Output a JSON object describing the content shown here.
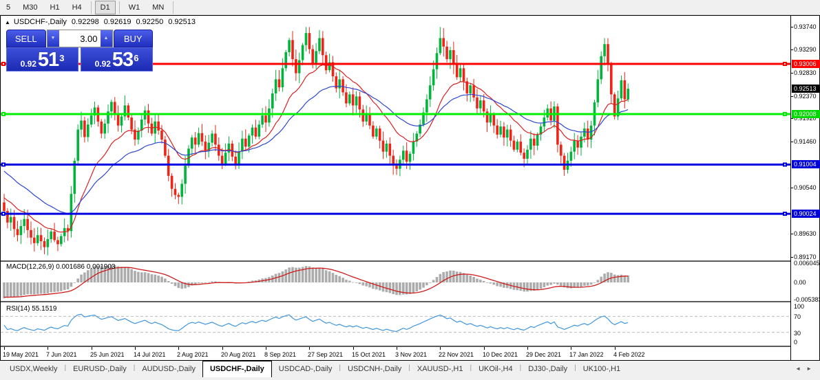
{
  "toolbar": {
    "timeframes": [
      {
        "label": "5",
        "active": false
      },
      {
        "label": "M30",
        "active": false
      },
      {
        "label": "H1",
        "active": false
      },
      {
        "label": "H4",
        "active": false
      },
      {
        "label": "D1",
        "active": true
      },
      {
        "label": "W1",
        "active": false
      },
      {
        "label": "MN",
        "active": false
      }
    ]
  },
  "chart": {
    "collapse_glyph": "▲",
    "title": "USDCHF-,Daily",
    "open": "0.92298",
    "high": "0.92619",
    "low": "0.92250",
    "close": "0.92513"
  },
  "one_click": {
    "sell_label": "SELL",
    "buy_label": "BUY",
    "volume": "3.00",
    "down_glyph": "▼",
    "up_glyph": "▲",
    "sell_price": {
      "base": "0.92",
      "big": "51",
      "sup": "3"
    },
    "buy_price": {
      "base": "0.92",
      "big": "53",
      "sup": "6"
    }
  },
  "price_axis": {
    "ticks": [
      "0.93740",
      "0.93290",
      "0.92830",
      "0.92370",
      "0.91920",
      "0.91460",
      "0.90540",
      "0.89630",
      "0.89170"
    ],
    "tags": [
      {
        "text": "0.93006",
        "bg": "#FF0000",
        "fg": "#FFFFFF"
      },
      {
        "text": "0.92513",
        "bg": "#000000",
        "fg": "#FFFFFF"
      },
      {
        "text": "0.92008",
        "bg": "#00D800",
        "fg": "#FFFFFF"
      },
      {
        "text": "0.91004",
        "bg": "#0000D8",
        "fg": "#FFFFFF"
      },
      {
        "text": "0.90024",
        "bg": "#0000D8",
        "fg": "#FFFFFF"
      }
    ]
  },
  "macd_panel": {
    "label": "MACD(12,26,9)",
    "main_value": "0.001686",
    "signal_value": "0.001903",
    "axis": [
      {
        "text": "0.006045",
        "v": 0.006045
      },
      {
        "text": "0.00",
        "v": 0
      },
      {
        "text": "-0.005383",
        "v": -0.005383
      }
    ]
  },
  "rsi_panel": {
    "label": "RSI(14)",
    "value": "55.1519",
    "axis": [
      {
        "text": "100",
        "v": 100
      },
      {
        "text": "70",
        "v": 70
      },
      {
        "text": "30",
        "v": 30
      },
      {
        "text": "0",
        "v": 0
      }
    ]
  },
  "x_axis": {
    "labels": [
      "19 May 2021",
      "7 Jun 2021",
      "25 Jun 2021",
      "14 Jul 2021",
      "2 Aug 2021",
      "20 Aug 2021",
      "8 Sep 2021",
      "27 Sep 2021",
      "15 Oct 2021",
      "3 Nov 2021",
      "22 Nov 2021",
      "10 Dec 2021",
      "29 Dec 2021",
      "17 Jan 2022",
      "4 Feb 2022"
    ],
    "step_candles": 13
  },
  "tabs": {
    "scroll_left_glyph": "◄",
    "scroll_right_glyph": "►",
    "items": [
      {
        "label": "USDX,Weekly",
        "active": false
      },
      {
        "label": "EURUSD-,Daily",
        "active": false
      },
      {
        "label": "AUDUSD-,Daily",
        "active": false
      },
      {
        "label": "USDCHF-,Daily",
        "active": true
      },
      {
        "label": "USDCAD-,Daily",
        "active": false
      },
      {
        "label": "USDCNH-,Daily",
        "active": false
      },
      {
        "label": "XAUUSD-,H1",
        "active": false
      },
      {
        "label": "UKOil-,H4",
        "active": false
      },
      {
        "label": "DJ30-,Daily",
        "active": false
      },
      {
        "label": "UK100-,H1",
        "active": false
      }
    ]
  },
  "chart_data": {
    "type": "candlestick",
    "symbol": "USDCHF",
    "timeframe": "Daily",
    "current_ohlc": {
      "open": 0.92298,
      "high": 0.92619,
      "low": 0.9225,
      "close": 0.92513
    },
    "first_open": 0.9025,
    "closes": [
      0.9008,
      0.8985,
      0.8996,
      0.8972,
      0.896,
      0.8978,
      0.8992,
      0.897,
      0.8955,
      0.8944,
      0.896,
      0.8948,
      0.8936,
      0.8952,
      0.8967,
      0.895,
      0.8942,
      0.8958,
      0.8974,
      0.8968,
      0.9042,
      0.9108,
      0.917,
      0.9188,
      0.9155,
      0.918,
      0.9198,
      0.9214,
      0.9186,
      0.9162,
      0.9182,
      0.9206,
      0.9225,
      0.9202,
      0.9178,
      0.9196,
      0.9218,
      0.9194,
      0.917,
      0.915,
      0.9168,
      0.919,
      0.9208,
      0.9182,
      0.9162,
      0.9186,
      0.9168,
      0.915,
      0.9118,
      0.9078,
      0.9052,
      0.904,
      0.9036,
      0.9062,
      0.9098,
      0.9132,
      0.9154,
      0.914,
      0.9163,
      0.9146,
      0.9128,
      0.9144,
      0.9162,
      0.914,
      0.9118,
      0.9102,
      0.9124,
      0.9142,
      0.9116,
      0.9098,
      0.9126,
      0.9152,
      0.9136,
      0.9158,
      0.9174,
      0.9156,
      0.918,
      0.9198,
      0.9184,
      0.9212,
      0.9242,
      0.927,
      0.9254,
      0.9292,
      0.9324,
      0.9348,
      0.931,
      0.9282,
      0.9308,
      0.9338,
      0.9362,
      0.933,
      0.93,
      0.9326,
      0.9352,
      0.9318,
      0.9288,
      0.9304,
      0.9276,
      0.9252,
      0.927,
      0.9244,
      0.9222,
      0.924,
      0.9218,
      0.9236,
      0.921,
      0.9186,
      0.9202,
      0.9178,
      0.9156,
      0.9172,
      0.9148,
      0.9126,
      0.9142,
      0.9118,
      0.9098,
      0.9092,
      0.911,
      0.9128,
      0.9106,
      0.9122,
      0.9146,
      0.9162,
      0.918,
      0.9204,
      0.923,
      0.9258,
      0.929,
      0.9322,
      0.9352,
      0.9335,
      0.931,
      0.9328,
      0.93,
      0.9274,
      0.9292,
      0.9266,
      0.9242,
      0.9258,
      0.9234,
      0.9212,
      0.9228,
      0.9206,
      0.9184,
      0.92,
      0.9178,
      0.916,
      0.9176,
      0.9154,
      0.917,
      0.9148,
      0.913,
      0.9146,
      0.9124,
      0.9112,
      0.913,
      0.9152,
      0.9138,
      0.916,
      0.9176,
      0.9194,
      0.9212,
      0.9188,
      0.9216,
      0.914,
      0.9118,
      0.909,
      0.9108,
      0.9126,
      0.9148,
      0.9134,
      0.9156,
      0.9172,
      0.915,
      0.9178,
      0.9224,
      0.927,
      0.9316,
      0.934,
      0.93,
      0.924,
      0.9196,
      0.9232,
      0.9268,
      0.923,
      0.92513
    ],
    "wick_overrides": {
      "12": {
        "low": 0.8922
      },
      "20": {
        "low": 0.8955
      },
      "52": {
        "low": 0.9022
      },
      "86": {
        "high": 0.9366
      },
      "90": {
        "high": 0.9374
      },
      "94": {
        "high": 0.9368
      },
      "116": {
        "low": 0.908
      },
      "130": {
        "high": 0.9374
      },
      "167": {
        "low": 0.9078
      },
      "179": {
        "high": 0.9352
      },
      "182": {
        "low": 0.919
      },
      "186": {
        "high": 0.92619,
        "low": 0.9225
      }
    },
    "hlines": [
      {
        "price": 0.93006,
        "color": "#FF0000",
        "width": 3
      },
      {
        "price": 0.92008,
        "color": "#00EE00",
        "width": 3
      },
      {
        "price": 0.91004,
        "color": "#0000E0",
        "width": 3
      },
      {
        "price": 0.90024,
        "color": "#0000E0",
        "width": 3
      }
    ],
    "indicators": {
      "ma_fast": {
        "type": "ema",
        "period": 16,
        "color": "#DC1E1E",
        "seed": 0.9038
      },
      "ma_slow": {
        "type": "ema",
        "period": 34,
        "color": "#2B46D0",
        "seed": 0.9092
      },
      "macd": {
        "fast": 12,
        "slow": 26,
        "signal": 9,
        "seed_fast": 0.9008,
        "seed_slow": 0.9062,
        "seed_signal": -0.0045,
        "hist_color": "#ACACAC",
        "signal_color": "#D01A1A",
        "scale_max": 0.006045,
        "scale_min": -0.005383
      },
      "rsi": {
        "period": 14,
        "color": "#3E96E0",
        "levels": [
          70,
          30
        ],
        "level_color": "#BBBBBB"
      }
    },
    "colors": {
      "bull": "#00B43C",
      "bear": "#EF2417",
      "background": "#FFFFFF"
    }
  }
}
